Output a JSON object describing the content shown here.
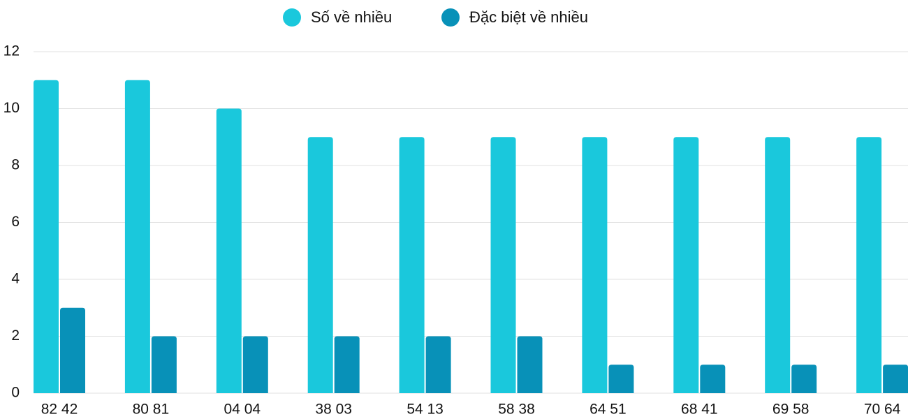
{
  "chart_data": {
    "type": "bar",
    "categories": [
      "82 42",
      "80 81",
      "04 04",
      "38 03",
      "54 13",
      "58 38",
      "64 51",
      "68 41",
      "69 58",
      "70 64"
    ],
    "series": [
      {
        "name": "Số về nhiều",
        "color": "#1ac8dc",
        "values": [
          11,
          11,
          10,
          9,
          9,
          9,
          9,
          9,
          9,
          9
        ]
      },
      {
        "name": "Đặc biệt về nhiều",
        "color": "#0891b8",
        "values": [
          3,
          2,
          2,
          2,
          2,
          2,
          1,
          1,
          1,
          1
        ]
      }
    ],
    "ylim": [
      0,
      12
    ],
    "yticks": [
      0,
      2,
      4,
      6,
      8,
      10,
      12
    ],
    "grid": true,
    "legend": "top"
  }
}
